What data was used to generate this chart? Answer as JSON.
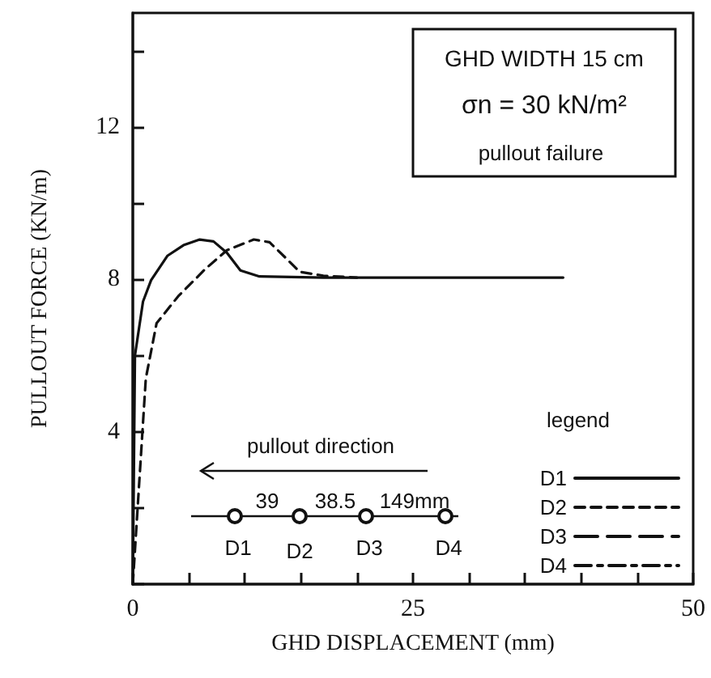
{
  "chart_data": {
    "type": "line",
    "xlabel": "GHD DISPLACEMENT (mm)",
    "ylabel": "PULLOUT FORCE (KN/m)",
    "legend_title": "legend",
    "xlim": [
      0,
      50
    ],
    "ylim": [
      0,
      15
    ],
    "xticks": [
      0,
      {
        "value": 5,
        "label": null
      },
      {
        "value": 10,
        "label": null
      },
      {
        "value": 15,
        "label": null
      },
      {
        "value": 20,
        "label": null
      },
      25,
      {
        "value": 30,
        "label": null
      },
      {
        "value": 35,
        "label": null
      },
      {
        "value": 40,
        "label": null
      },
      {
        "value": 45,
        "label": null
      },
      50
    ],
    "yticks": [
      {
        "value": 0,
        "label": null
      },
      {
        "value": 2,
        "label": null
      },
      4,
      {
        "value": 6,
        "label": null
      },
      8,
      {
        "value": 10,
        "label": null
      },
      12,
      {
        "value": 14,
        "label": null
      }
    ],
    "grid": false,
    "legend": "right",
    "marker": "none",
    "annotations": [
      "GHD WIDTH 15 cm",
      "σn = 30 kN/m²",
      "pullout failure",
      "pullout direction",
      "39",
      "38.5",
      "149mm",
      "D1",
      "D2",
      "D3",
      "D4"
    ],
    "series": [
      {
        "name": "D1",
        "color": "#111111",
        "line_style": "solid",
        "x": [
          0,
          0.19,
          0.91,
          1.63,
          3.08,
          4.52,
          5.97,
          7.2,
          8.4,
          9.6,
          11.3,
          17,
          25,
          38.4
        ],
        "values": [
          0,
          6.0,
          7.42,
          7.98,
          8.62,
          8.9,
          9.05,
          9.0,
          8.7,
          8.24,
          8.08,
          8.05,
          8.05,
          8.05
        ]
      },
      {
        "name": "D2",
        "color": "#111111",
        "line_style": "dashed",
        "x": [
          0,
          1.16,
          2.12,
          4.05,
          6.45,
          8.4,
          10.8,
          12.2,
          13.7,
          14.9,
          17.0,
          20
        ],
        "values": [
          0,
          5.4,
          6.85,
          7.56,
          8.27,
          8.77,
          9.05,
          8.98,
          8.55,
          8.2,
          8.1,
          8.05
        ]
      },
      {
        "name": "D3",
        "color": "#111111",
        "line_style": "longdash"
      },
      {
        "name": "D4",
        "color": "#111111",
        "line_style": "dashdot"
      }
    ]
  }
}
